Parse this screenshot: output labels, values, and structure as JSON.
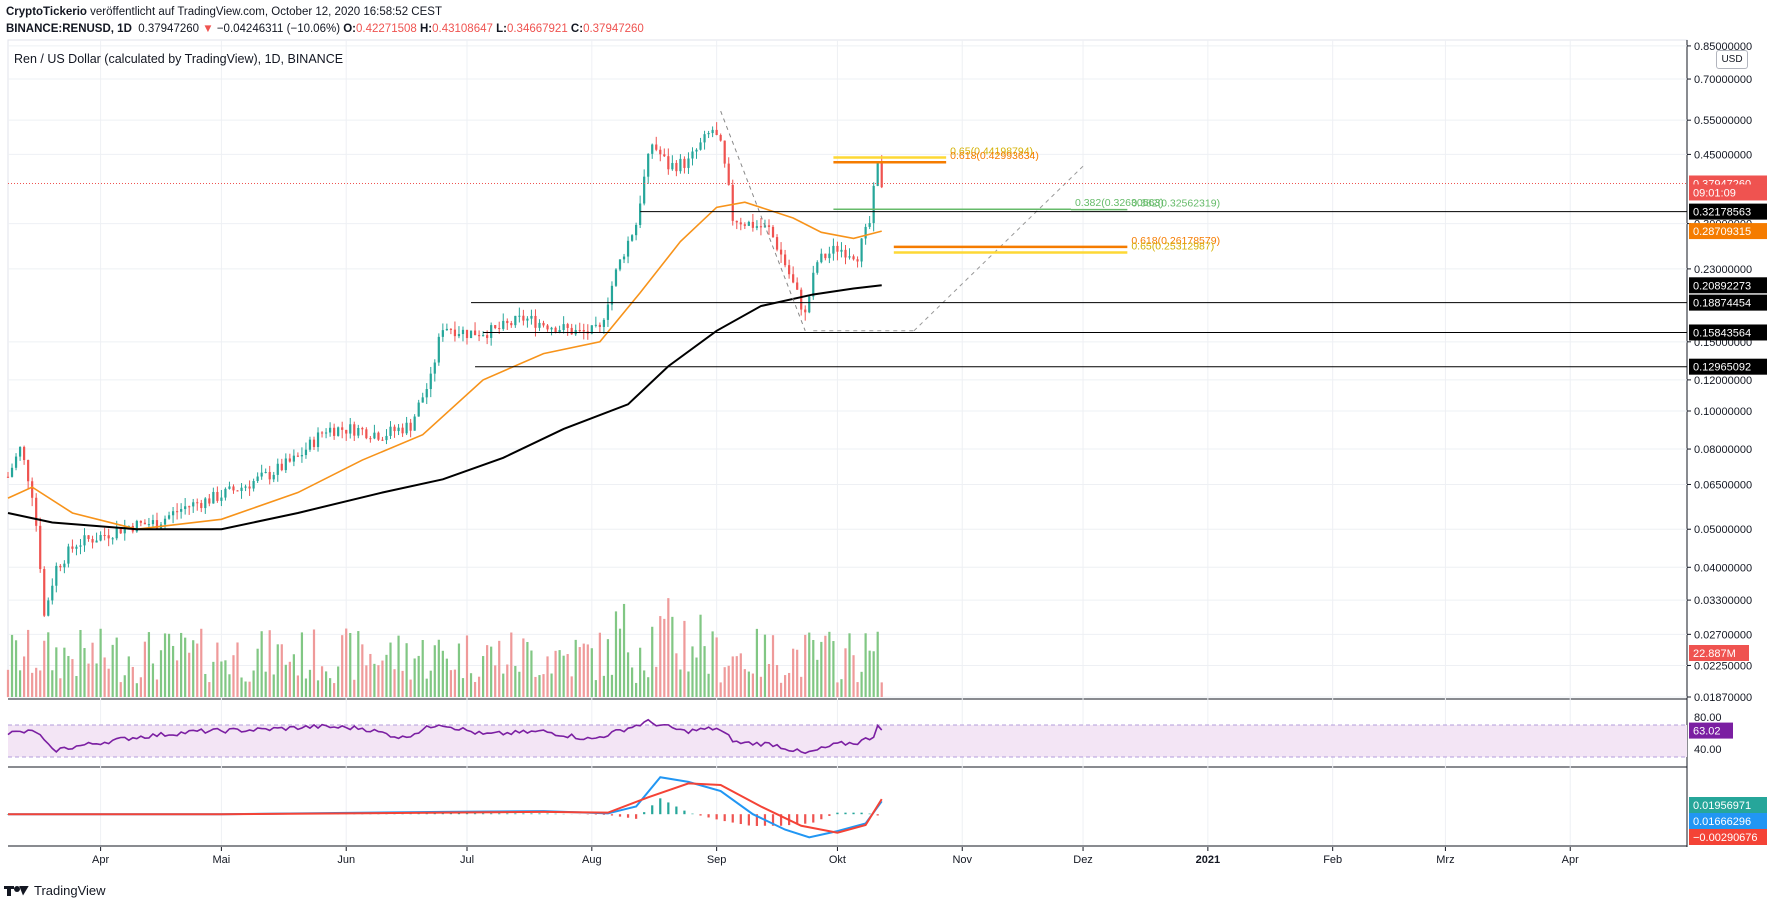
{
  "header": {
    "author": "CryptoTickerio",
    "published": "veröffentlicht auf TradingView.com, October 12, 2020 16:58:52 CEST",
    "symbol": "BINANCE:RENUSD, 1D",
    "last": "0.37947260",
    "change": "−0.04246311 (−10.06%)",
    "o_label": "O:",
    "o": "0.42271508",
    "h_label": "H:",
    "h": "0.43108647",
    "l_label": "L:",
    "l": "0.34667921",
    "c_label": "C:",
    "c": "0.37947260"
  },
  "chart_title": "Ren / US Dollar (calculated by TradingView), 1D, BINANCE",
  "currency": "USD",
  "footer_brand": "TradingView",
  "colors": {
    "up": "#26a69a",
    "down": "#ef5350",
    "up_bar": "#81c784",
    "down_bar": "#ef9a9a",
    "ema_short": "#f7931a",
    "ema_long": "#000000",
    "rsi": "#7b1fa2",
    "macd": "#2196f3",
    "signal": "#f44336",
    "fib_orange": "#f57c00",
    "fib_yellow": "#fdd835",
    "fib_green": "#66bb6a"
  },
  "chart_data": [
    {
      "type": "candlestick",
      "scale": "log",
      "x_range": [
        "2020-03-09",
        "2021-04-30"
      ],
      "x_ticks": [
        "Apr",
        "Mai",
        "Jun",
        "Jul",
        "Aug",
        "Sep",
        "Okt",
        "Nov",
        "Dez",
        "2021",
        "Feb",
        "Mrz",
        "Apr"
      ],
      "y_ticks": [
        "0.85000000",
        "0.70000000",
        "0.55000000",
        "0.45000000",
        "0.30000000",
        "0.23000000",
        "0.15000000",
        "0.12000000",
        "0.10000000",
        "0.08000000",
        "0.06500000",
        "0.05000000",
        "0.04000000",
        "0.03300000",
        "0.02700000",
        "0.02250000",
        "0.01870000"
      ],
      "ylim": [
        0.0187,
        0.88
      ],
      "close_path": [
        [
          "2020-03-09",
          0.068
        ],
        [
          "2020-03-12",
          0.08
        ],
        [
          "2020-03-15",
          0.062
        ],
        [
          "2020-03-18",
          0.03
        ],
        [
          "2020-03-21",
          0.04
        ],
        [
          "2020-03-26",
          0.046
        ],
        [
          "2020-04-01",
          0.048
        ],
        [
          "2020-04-08",
          0.051
        ],
        [
          "2020-04-15",
          0.052
        ],
        [
          "2020-04-22",
          0.057
        ],
        [
          "2020-04-29",
          0.06
        ],
        [
          "2020-05-06",
          0.064
        ],
        [
          "2020-05-13",
          0.069
        ],
        [
          "2020-05-20",
          0.076
        ],
        [
          "2020-05-27",
          0.09
        ],
        [
          "2020-06-03",
          0.09
        ],
        [
          "2020-06-10",
          0.087
        ],
        [
          "2020-06-17",
          0.092
        ],
        [
          "2020-06-22",
          0.12
        ],
        [
          "2020-06-25",
          0.165
        ],
        [
          "2020-07-01",
          0.158
        ],
        [
          "2020-07-08",
          0.16
        ],
        [
          "2020-07-15",
          0.172
        ],
        [
          "2020-07-22",
          0.165
        ],
        [
          "2020-07-29",
          0.158
        ],
        [
          "2020-08-03",
          0.16
        ],
        [
          "2020-08-07",
          0.225
        ],
        [
          "2020-08-12",
          0.3
        ],
        [
          "2020-08-16",
          0.48
        ],
        [
          "2020-08-20",
          0.42
        ],
        [
          "2020-08-25",
          0.43
        ],
        [
          "2020-08-31",
          0.52
        ],
        [
          "2020-09-02",
          0.47
        ],
        [
          "2020-09-05",
          0.31
        ],
        [
          "2020-09-09",
          0.3
        ],
        [
          "2020-09-14",
          0.29
        ],
        [
          "2020-09-20",
          0.21
        ],
        [
          "2020-09-23",
          0.175
        ],
        [
          "2020-09-26",
          0.24
        ],
        [
          "2020-10-01",
          0.26
        ],
        [
          "2020-10-06",
          0.25
        ],
        [
          "2020-10-09",
          0.3
        ],
        [
          "2020-10-11",
          0.42
        ],
        [
          "2020-10-12",
          0.379
        ]
      ],
      "ema_short_path": [
        [
          "2020-03-09",
          0.06
        ],
        [
          "2020-03-15",
          0.064
        ],
        [
          "2020-03-25",
          0.055
        ],
        [
          "2020-04-10",
          0.05
        ],
        [
          "2020-05-01",
          0.053
        ],
        [
          "2020-05-20",
          0.062
        ],
        [
          "2020-06-05",
          0.075
        ],
        [
          "2020-06-20",
          0.087
        ],
        [
          "2020-07-05",
          0.12
        ],
        [
          "2020-07-20",
          0.14
        ],
        [
          "2020-08-03",
          0.15
        ],
        [
          "2020-08-13",
          0.2
        ],
        [
          "2020-08-23",
          0.27
        ],
        [
          "2020-09-01",
          0.33
        ],
        [
          "2020-09-08",
          0.34
        ],
        [
          "2020-09-20",
          0.31
        ],
        [
          "2020-09-27",
          0.285
        ],
        [
          "2020-10-05",
          0.275
        ],
        [
          "2020-10-12",
          0.287
        ]
      ],
      "ema_long_path": [
        [
          "2020-03-09",
          0.055
        ],
        [
          "2020-03-20",
          0.052
        ],
        [
          "2020-04-10",
          0.05
        ],
        [
          "2020-05-01",
          0.05
        ],
        [
          "2020-05-20",
          0.055
        ],
        [
          "2020-06-10",
          0.062
        ],
        [
          "2020-06-25",
          0.067
        ],
        [
          "2020-07-10",
          0.076
        ],
        [
          "2020-07-25",
          0.09
        ],
        [
          "2020-08-10",
          0.104
        ],
        [
          "2020-08-20",
          0.13
        ],
        [
          "2020-09-01",
          0.16
        ],
        [
          "2020-09-12",
          0.185
        ],
        [
          "2020-09-25",
          0.198
        ],
        [
          "2020-10-05",
          0.205
        ],
        [
          "2020-10-12",
          0.209
        ]
      ],
      "horizontal_levels": [
        {
          "label": "0.32178563",
          "value": 0.32178563,
          "color": "#000000",
          "from": "2020-08-13"
        },
        {
          "label": "0.18874454",
          "value": 0.18874454,
          "color": "#000000",
          "from": "2020-07-02"
        },
        {
          "label": "0.15843564",
          "value": 0.15843564,
          "color": "#000000",
          "from": "2020-07-05"
        },
        {
          "label": "0.12965092",
          "value": 0.12965092,
          "color": "#000000",
          "from": "2020-07-03"
        }
      ],
      "fib_levels": [
        {
          "label": "0.65(0.44198794)",
          "value": 0.44198794,
          "color": "#fdd835",
          "from": "2020-09-30",
          "to": "2020-10-28"
        },
        {
          "label": "0.618(0.42993634)",
          "value": 0.42993634,
          "color": "#f57c00",
          "from": "2020-09-30",
          "to": "2020-10-28"
        },
        {
          "label": "0.382(0.32630563)",
          "value": 0.32630563,
          "color": "#66bb6a",
          "from": "2020-09-30",
          "to": "2020-11-28"
        },
        {
          "label": "0.382(0.32562319)",
          "value": 0.32562319,
          "color": "#66bb6a",
          "from": "2020-11-28",
          "to": "2020-12-12"
        },
        {
          "label": "0.618(0.26178579)",
          "value": 0.26178579,
          "color": "#f57c00",
          "from": "2020-10-15",
          "to": "2020-12-12"
        },
        {
          "label": "0.65(0.25312987)",
          "value": 0.25312987,
          "color": "#fdd835",
          "from": "2020-10-15",
          "to": "2020-12-12"
        }
      ],
      "price_labels": [
        {
          "text": "0.37947260",
          "value": 0.3794726,
          "bg": "#ef5350"
        },
        {
          "text": "09:01:09",
          "value": 0.36,
          "bg": "#ef5350"
        },
        {
          "text": "0.32178563",
          "value": 0.32178563,
          "bg": "#000000"
        },
        {
          "text": "0.28709315",
          "value": 0.28709315,
          "bg": "#f57c00"
        },
        {
          "text": "0.20892273",
          "value": 0.20892273,
          "bg": "#000000"
        },
        {
          "text": "0.18874454",
          "value": 0.18874454,
          "bg": "#000000"
        },
        {
          "text": "0.15843564",
          "value": 0.15843564,
          "bg": "#000000"
        },
        {
          "text": "0.12965092",
          "value": 0.12965092,
          "bg": "#000000"
        }
      ]
    },
    {
      "type": "bar",
      "name": "volume",
      "last_label": "22.887M"
    },
    {
      "type": "line",
      "name": "RSI",
      "y_ticks": [
        "80.00",
        "40.00"
      ],
      "ylim": [
        20,
        100
      ],
      "band": [
        30,
        70
      ],
      "last": 63.02,
      "last_label": "63.02",
      "path": [
        [
          "2020-03-09",
          60
        ],
        [
          "2020-03-16",
          62
        ],
        [
          "2020-03-20",
          38
        ],
        [
          "2020-03-28",
          45
        ],
        [
          "2020-04-10",
          55
        ],
        [
          "2020-04-25",
          62
        ],
        [
          "2020-05-10",
          64
        ],
        [
          "2020-05-25",
          68
        ],
        [
          "2020-06-05",
          66
        ],
        [
          "2020-06-15",
          54
        ],
        [
          "2020-06-24",
          72
        ],
        [
          "2020-07-05",
          58
        ],
        [
          "2020-07-20",
          62
        ],
        [
          "2020-08-01",
          52
        ],
        [
          "2020-08-15",
          74
        ],
        [
          "2020-08-24",
          62
        ],
        [
          "2020-09-01",
          66
        ],
        [
          "2020-09-06",
          48
        ],
        [
          "2020-09-15",
          46
        ],
        [
          "2020-09-23",
          34
        ],
        [
          "2020-10-01",
          46
        ],
        [
          "2020-10-06",
          48
        ],
        [
          "2020-10-10",
          56
        ],
        [
          "2020-10-11",
          72
        ],
        [
          "2020-10-12",
          63
        ]
      ]
    },
    {
      "type": "line",
      "name": "MACD",
      "ylim": [
        -0.04,
        0.06
      ],
      "labels": [
        {
          "text": "0.01956971",
          "value": 0.01956971,
          "bg": "#26a69a"
        },
        {
          "text": "0.01666296",
          "value": 0.01666296,
          "bg": "#2196f3"
        },
        {
          "text": "−0.00290676",
          "value": -0.00290676,
          "bg": "#f44336"
        }
      ],
      "macd_path": [
        [
          "2020-03-09",
          0.0
        ],
        [
          "2020-05-01",
          0.0
        ],
        [
          "2020-06-25",
          0.003
        ],
        [
          "2020-07-20",
          0.004
        ],
        [
          "2020-08-05",
          0.001
        ],
        [
          "2020-08-12",
          0.01
        ],
        [
          "2020-08-18",
          0.048
        ],
        [
          "2020-08-25",
          0.042
        ],
        [
          "2020-09-02",
          0.03
        ],
        [
          "2020-09-10",
          0.0
        ],
        [
          "2020-09-18",
          -0.02
        ],
        [
          "2020-09-24",
          -0.03
        ],
        [
          "2020-10-01",
          -0.022
        ],
        [
          "2020-10-08",
          -0.012
        ],
        [
          "2020-10-12",
          0.0167
        ]
      ],
      "signal_path": [
        [
          "2020-03-09",
          0.0
        ],
        [
          "2020-05-01",
          0.0
        ],
        [
          "2020-06-25",
          0.002
        ],
        [
          "2020-07-20",
          0.003
        ],
        [
          "2020-08-05",
          0.002
        ],
        [
          "2020-08-15",
          0.022
        ],
        [
          "2020-08-25",
          0.04
        ],
        [
          "2020-09-02",
          0.038
        ],
        [
          "2020-09-12",
          0.01
        ],
        [
          "2020-09-22",
          -0.015
        ],
        [
          "2020-10-01",
          -0.024
        ],
        [
          "2020-10-08",
          -0.014
        ],
        [
          "2020-10-12",
          0.0196
        ]
      ]
    }
  ]
}
